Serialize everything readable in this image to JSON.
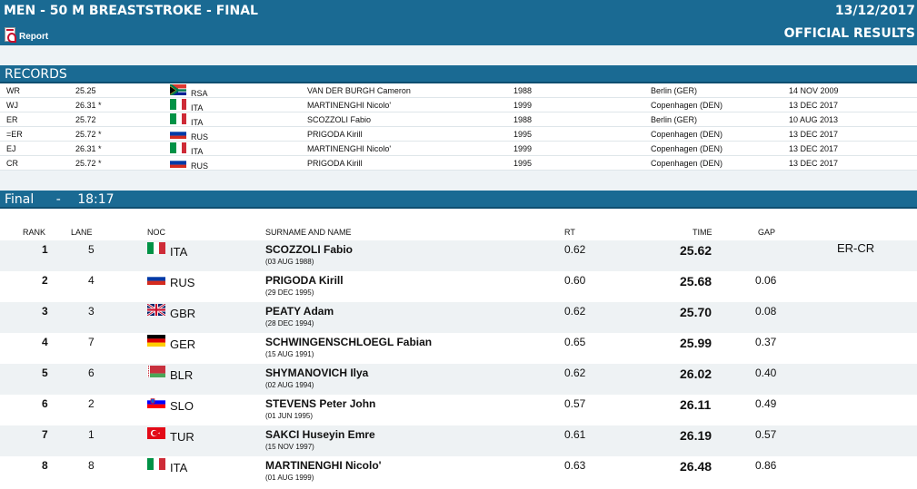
{
  "header": {
    "title": "MEN - 50 M BREASTSTROKE - FINAL",
    "date": "13/12/2017",
    "report_label": "Report",
    "official": "OFFICIAL RESULTS"
  },
  "records": {
    "section_title": "RECORDS",
    "rows": [
      {
        "type": "WR",
        "time": "25.25",
        "noc": "RSA",
        "name": "VAN DER BURGH Cameron",
        "year": "1988",
        "place": "Berlin (GER)",
        "date": "14 NOV 2009"
      },
      {
        "type": "WJ",
        "time": "26.31 *",
        "noc": "ITA",
        "name": "MARTINENGHI Nicolo'",
        "year": "1999",
        "place": "Copenhagen (DEN)",
        "date": "13 DEC 2017"
      },
      {
        "type": "ER",
        "time": "25.72",
        "noc": "ITA",
        "name": "SCOZZOLI Fabio",
        "year": "1988",
        "place": "Berlin (GER)",
        "date": "10 AUG 2013"
      },
      {
        "type": "=ER",
        "time": "25.72 *",
        "noc": "RUS",
        "name": "PRIGODA Kirill",
        "year": "1995",
        "place": "Copenhagen (DEN)",
        "date": "13 DEC 2017"
      },
      {
        "type": "EJ",
        "time": "26.31 *",
        "noc": "ITA",
        "name": "MARTINENGHI Nicolo'",
        "year": "1999",
        "place": "Copenhagen (DEN)",
        "date": "13 DEC 2017"
      },
      {
        "type": "CR",
        "time": "25.72 *",
        "noc": "RUS",
        "name": "PRIGODA Kirill",
        "year": "1995",
        "place": "Copenhagen (DEN)",
        "date": "13 DEC 2017"
      }
    ]
  },
  "final": {
    "section_label": "Final",
    "section_sep": "-",
    "section_time": "18:17",
    "headers": {
      "rank": "RANK",
      "lane": "LANE",
      "noc": "NOC",
      "name": "SURNAME AND NAME",
      "rt": "RT",
      "time": "TIME",
      "gap": "GAP"
    },
    "rows": [
      {
        "rank": "1",
        "lane": "5",
        "noc": "ITA",
        "name": "SCOZZOLI Fabio",
        "dob": "(03 AUG 1988)",
        "rt": "0.62",
        "time": "25.62",
        "gap": "",
        "record": "ER-CR"
      },
      {
        "rank": "2",
        "lane": "4",
        "noc": "RUS",
        "name": "PRIGODA Kirill",
        "dob": "(29 DEC 1995)",
        "rt": "0.60",
        "time": "25.68",
        "gap": "0.06",
        "record": ""
      },
      {
        "rank": "3",
        "lane": "3",
        "noc": "GBR",
        "name": "PEATY Adam",
        "dob": "(28 DEC 1994)",
        "rt": "0.62",
        "time": "25.70",
        "gap": "0.08",
        "record": ""
      },
      {
        "rank": "4",
        "lane": "7",
        "noc": "GER",
        "name": "SCHWINGENSCHLOEGL Fabian",
        "dob": "(15 AUG 1991)",
        "rt": "0.65",
        "time": "25.99",
        "gap": "0.37",
        "record": ""
      },
      {
        "rank": "5",
        "lane": "6",
        "noc": "BLR",
        "name": "SHYMANOVICH Ilya",
        "dob": "(02 AUG 1994)",
        "rt": "0.62",
        "time": "26.02",
        "gap": "0.40",
        "record": ""
      },
      {
        "rank": "6",
        "lane": "2",
        "noc": "SLO",
        "name": "STEVENS Peter John",
        "dob": "(01 JUN 1995)",
        "rt": "0.57",
        "time": "26.11",
        "gap": "0.49",
        "record": ""
      },
      {
        "rank": "7",
        "lane": "1",
        "noc": "TUR",
        "name": "SAKCI Huseyin Emre",
        "dob": "(15 NOV 1997)",
        "rt": "0.61",
        "time": "26.19",
        "gap": "0.57",
        "record": ""
      },
      {
        "rank": "8",
        "lane": "8",
        "noc": "ITA",
        "name": "MARTINENGHI Nicolo'",
        "dob": "(01 AUG 1999)",
        "rt": "0.63",
        "time": "26.48",
        "gap": "0.86",
        "record": ""
      }
    ]
  },
  "colors": {
    "header_bg": "#1a6a93",
    "alt_row": "#eef2f4"
  }
}
